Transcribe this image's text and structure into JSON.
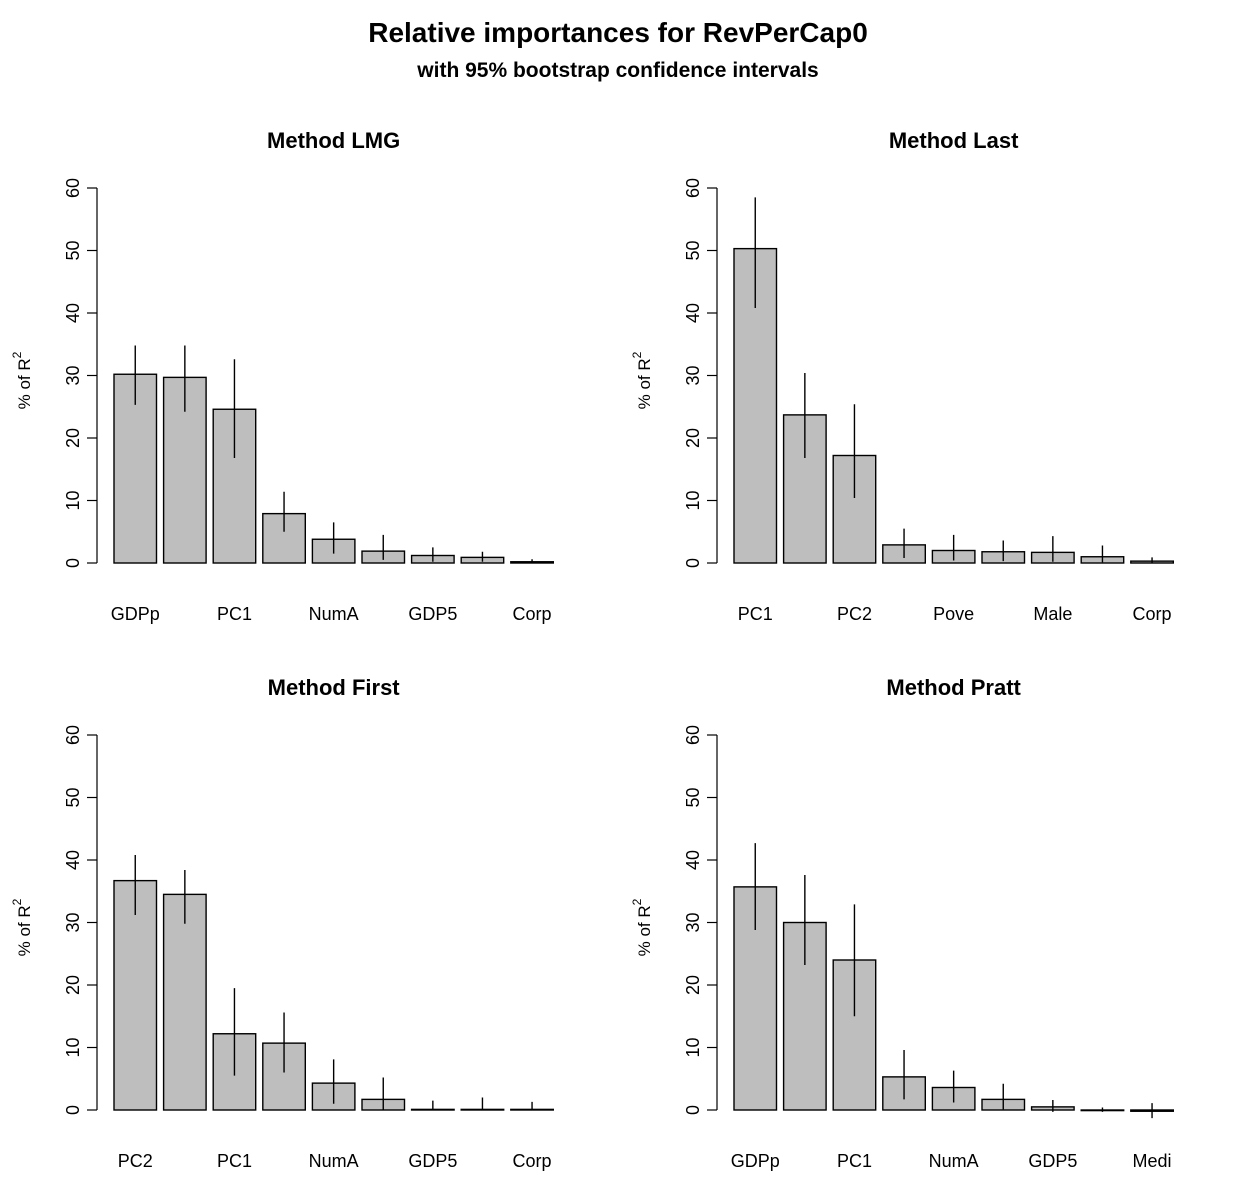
{
  "figure": {
    "title": "Relative importances for RevPerCap0",
    "subtitle": "with 95% bootstrap confidence intervals"
  },
  "chart_data": [
    {
      "type": "bar",
      "title": "Method LMG",
      "ylabel": "% of R",
      "ylabel_sup": "2",
      "ylim": [
        0,
        60
      ],
      "yticks": [
        "0",
        "10",
        "20",
        "30",
        "40",
        "50",
        "60"
      ],
      "categories": [
        "GDPp",
        "",
        "PC1",
        "",
        "NumA",
        "",
        "GDP5",
        "",
        "Corp"
      ],
      "values": [
        30.2,
        29.7,
        24.6,
        7.9,
        3.8,
        1.9,
        1.2,
        0.9,
        0.2
      ],
      "lower": [
        25.3,
        24.2,
        16.8,
        5.0,
        1.5,
        0.5,
        0.2,
        0.2,
        0.0
      ],
      "upper": [
        34.8,
        34.8,
        32.6,
        11.4,
        6.5,
        4.5,
        2.5,
        1.8,
        0.6
      ]
    },
    {
      "type": "bar",
      "title": "Method Last",
      "ylabel": "% of R",
      "ylabel_sup": "2",
      "ylim": [
        0,
        60
      ],
      "yticks": [
        "0",
        "10",
        "20",
        "30",
        "40",
        "50",
        "60"
      ],
      "categories": [
        "PC1",
        "",
        "PC2",
        "",
        "Pove",
        "",
        "Male",
        "",
        "Corp"
      ],
      "values": [
        50.3,
        23.7,
        17.2,
        2.9,
        2.0,
        1.8,
        1.7,
        1.0,
        0.3
      ],
      "lower": [
        40.8,
        16.8,
        10.4,
        0.8,
        0.4,
        0.3,
        0.2,
        0.1,
        0.0
      ],
      "upper": [
        58.5,
        30.4,
        25.4,
        5.5,
        4.5,
        3.6,
        4.3,
        2.8,
        0.9
      ]
    },
    {
      "type": "bar",
      "title": "Method First",
      "ylabel": "% of R",
      "ylabel_sup": "2",
      "ylim": [
        0,
        60
      ],
      "yticks": [
        "0",
        "10",
        "20",
        "30",
        "40",
        "50",
        "60"
      ],
      "categories": [
        "PC2",
        "",
        "PC1",
        "",
        "NumA",
        "",
        "GDP5",
        "",
        "Corp"
      ],
      "values": [
        36.7,
        34.5,
        12.2,
        10.7,
        4.3,
        1.7,
        0.1,
        0.1,
        0.1
      ],
      "lower": [
        31.2,
        29.8,
        5.5,
        6.0,
        1.0,
        0.0,
        0.0,
        0.0,
        0.0
      ],
      "upper": [
        40.8,
        38.4,
        19.5,
        15.6,
        8.1,
        5.2,
        1.5,
        2.0,
        1.3
      ]
    },
    {
      "type": "bar",
      "title": "Method Pratt",
      "ylabel": "% of R",
      "ylabel_sup": "2",
      "ylim": [
        0,
        60
      ],
      "yticks": [
        "0",
        "10",
        "20",
        "30",
        "40",
        "50",
        "60"
      ],
      "categories": [
        "GDPp",
        "",
        "PC1",
        "",
        "NumA",
        "",
        "GDP5",
        "",
        "Medi"
      ],
      "values": [
        35.7,
        30.0,
        24.0,
        5.3,
        3.6,
        1.7,
        0.5,
        0.0,
        -0.2
      ],
      "lower": [
        28.8,
        23.2,
        15.0,
        1.7,
        1.2,
        0.1,
        -0.3,
        -0.3,
        -1.3
      ],
      "upper": [
        42.7,
        37.6,
        32.9,
        9.6,
        6.3,
        4.2,
        1.6,
        0.4,
        1.1
      ]
    }
  ]
}
